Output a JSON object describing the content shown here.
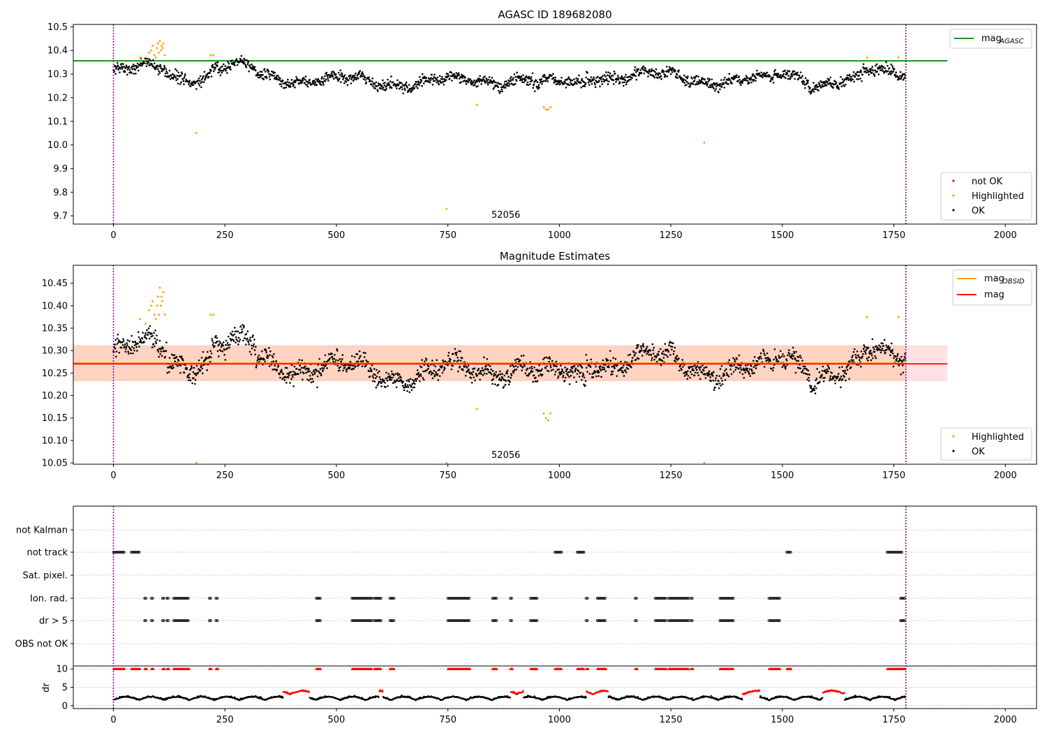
{
  "chart_data": [
    {
      "type": "scatter",
      "title": "AGASC ID 189682080",
      "xlim": [
        -90,
        2070
      ],
      "ylim": [
        9.665,
        10.51
      ],
      "xticks": [
        "0",
        "250",
        "500",
        "750",
        "1000",
        "1250",
        "1500",
        "1750",
        "2000"
      ],
      "yticks": [
        "9.7",
        "9.8",
        "9.9",
        "10.0",
        "10.1",
        "10.2",
        "10.3",
        "10.4",
        "10.5"
      ],
      "hline": {
        "y": 10.356,
        "x_end": 1870,
        "color": "#008000"
      },
      "vlines": [
        0,
        1777
      ],
      "annotation": "52056",
      "legend_lines": [
        {
          "label": "mag",
          "sub": "AGASC",
          "color": "#008000"
        }
      ],
      "legend_points": [
        {
          "label": "not OK",
          "color": "#ff0000"
        },
        {
          "label": "Highlighted",
          "color": "#ffa500"
        },
        {
          "label": "OK",
          "color": "#000000"
        }
      ],
      "series": [
        {
          "name": "OK",
          "color": "#000000",
          "n_points": 1777,
          "y_range": [
            10.17,
            10.37
          ]
        },
        {
          "name": "Highlighted",
          "color": "#ffa500",
          "points": [
            [
              60,
              10.37
            ],
            [
              72,
              10.35
            ],
            [
              80,
              10.39
            ],
            [
              85,
              10.4
            ],
            [
              88,
              10.42
            ],
            [
              92,
              10.38
            ],
            [
              95,
              10.37
            ],
            [
              98,
              10.41
            ],
            [
              100,
              10.43
            ],
            [
              102,
              10.39
            ],
            [
              104,
              10.44
            ],
            [
              106,
              10.4
            ],
            [
              108,
              10.42
            ],
            [
              110,
              10.41
            ],
            [
              112,
              10.43
            ],
            [
              115,
              10.38
            ],
            [
              186,
              10.05
            ],
            [
              218,
              10.38
            ],
            [
              224,
              10.38
            ],
            [
              747,
              9.73
            ],
            [
              815,
              10.17
            ],
            [
              965,
              10.16
            ],
            [
              970,
              10.15
            ],
            [
              975,
              10.15
            ],
            [
              980,
              10.16
            ],
            [
              1325,
              10.01
            ],
            [
              1690,
              10.37
            ],
            [
              1760,
              10.37
            ]
          ]
        },
        {
          "name": "not OK",
          "color": "#ff0000",
          "points": []
        }
      ]
    },
    {
      "type": "scatter",
      "title": "Magnitude Estimates",
      "xlim": [
        -90,
        2070
      ],
      "ylim": [
        10.047,
        10.49
      ],
      "xticks": [
        "0",
        "250",
        "500",
        "750",
        "1000",
        "1250",
        "1500",
        "1750",
        "2000"
      ],
      "yticks": [
        "10.05",
        "10.10",
        "10.15",
        "10.20",
        "10.25",
        "10.30",
        "10.35",
        "10.40",
        "10.45"
      ],
      "hline_obsid": {
        "y": 10.272,
        "x_end": 1777,
        "color": "#ffa500"
      },
      "hline_mag": {
        "y": 10.272,
        "x_end": 1870,
        "color": "#ff0000"
      },
      "band_mag": {
        "y": [
          10.232,
          10.312
        ],
        "x_end": 1870,
        "color": "#ffb3ba"
      },
      "band_obsid": {
        "y": [
          10.232,
          10.312
        ],
        "x_end": 1777,
        "color": "#ffc9a8"
      },
      "vlines": [
        0,
        1777
      ],
      "annotation": "52056",
      "legend_lines": [
        {
          "label": "mag",
          "sub": "OBSID",
          "color": "#ffa500"
        },
        {
          "label": "mag",
          "sub": "",
          "color": "#ff0000"
        }
      ],
      "legend_points": [
        {
          "label": "Highlighted",
          "color": "#ffa500"
        },
        {
          "label": "OK",
          "color": "#000000"
        }
      ],
      "series": [
        {
          "name": "OK",
          "color": "#000000",
          "n_points": 1777,
          "y_range": [
            10.17,
            10.36
          ]
        },
        {
          "name": "Highlighted",
          "color": "#ffa500",
          "points": [
            [
              60,
              10.37
            ],
            [
              72,
              10.36
            ],
            [
              80,
              10.39
            ],
            [
              85,
              10.4
            ],
            [
              88,
              10.41
            ],
            [
              92,
              10.38
            ],
            [
              95,
              10.37
            ],
            [
              98,
              10.4
            ],
            [
              100,
              10.42
            ],
            [
              102,
              10.38
            ],
            [
              104,
              10.44
            ],
            [
              106,
              10.4
            ],
            [
              108,
              10.42
            ],
            [
              110,
              10.41
            ],
            [
              112,
              10.43
            ],
            [
              115,
              10.38
            ],
            [
              186,
              10.05
            ],
            [
              218,
              10.38
            ],
            [
              224,
              10.38
            ],
            [
              747,
              10.05
            ],
            [
              815,
              10.17
            ],
            [
              965,
              10.16
            ],
            [
              970,
              10.15
            ],
            [
              975,
              10.145
            ],
            [
              980,
              10.16
            ],
            [
              1325,
              10.05
            ],
            [
              1690,
              10.375
            ],
            [
              1760,
              10.375
            ]
          ]
        }
      ]
    },
    {
      "type": "scatter",
      "title": "",
      "xlim": [
        -90,
        2070
      ],
      "flag_labels": [
        "OBS not OK",
        "dr > 5",
        "Ion. rad.",
        "Sat. pixel.",
        "not track",
        "not Kalman"
      ],
      "flag_segments": {
        "not track": [
          [
            0,
            25
          ],
          [
            40,
            60
          ],
          [
            990,
            1005
          ],
          [
            1040,
            1055
          ],
          [
            1510,
            1520
          ],
          [
            1735,
            1770
          ]
        ],
        "Ion. rad.": [
          [
            70,
            75
          ],
          [
            85,
            90
          ],
          [
            110,
            115
          ],
          [
            120,
            125
          ],
          [
            135,
            170
          ],
          [
            215,
            220
          ],
          [
            230,
            235
          ],
          [
            455,
            465
          ],
          [
            535,
            580
          ],
          [
            585,
            600
          ],
          [
            620,
            630
          ],
          [
            750,
            800
          ],
          [
            850,
            860
          ],
          [
            890,
            895
          ],
          [
            935,
            950
          ],
          [
            1060,
            1065
          ],
          [
            1085,
            1105
          ],
          [
            1170,
            1175
          ],
          [
            1215,
            1240
          ],
          [
            1245,
            1290
          ],
          [
            1295,
            1300
          ],
          [
            1360,
            1390
          ],
          [
            1470,
            1495
          ],
          [
            1765,
            1775
          ]
        ],
        "dr > 5": [
          [
            70,
            75
          ],
          [
            85,
            90
          ],
          [
            110,
            115
          ],
          [
            120,
            125
          ],
          [
            135,
            170
          ],
          [
            215,
            220
          ],
          [
            230,
            235
          ],
          [
            455,
            465
          ],
          [
            535,
            580
          ],
          [
            585,
            600
          ],
          [
            620,
            630
          ],
          [
            750,
            800
          ],
          [
            850,
            860
          ],
          [
            890,
            895
          ],
          [
            935,
            950
          ],
          [
            1060,
            1065
          ],
          [
            1085,
            1105
          ],
          [
            1170,
            1175
          ],
          [
            1215,
            1240
          ],
          [
            1245,
            1290
          ],
          [
            1295,
            1300
          ],
          [
            1360,
            1390
          ],
          [
            1470,
            1495
          ],
          [
            1765,
            1775
          ]
        ]
      },
      "dr": {
        "ylabel": "dr",
        "ylim": [
          -0.8,
          10.8
        ],
        "yticks": [
          "0",
          "5",
          "10"
        ],
        "clip": 10,
        "threshold": 5,
        "n_points": 1777,
        "clipped_color": "#ff0000",
        "normal_color": "#000000"
      },
      "xticks": [
        "0",
        "250",
        "500",
        "750",
        "1000",
        "1250",
        "1500",
        "1750",
        "2000"
      ],
      "vlines": [
        0,
        1777
      ]
    }
  ]
}
